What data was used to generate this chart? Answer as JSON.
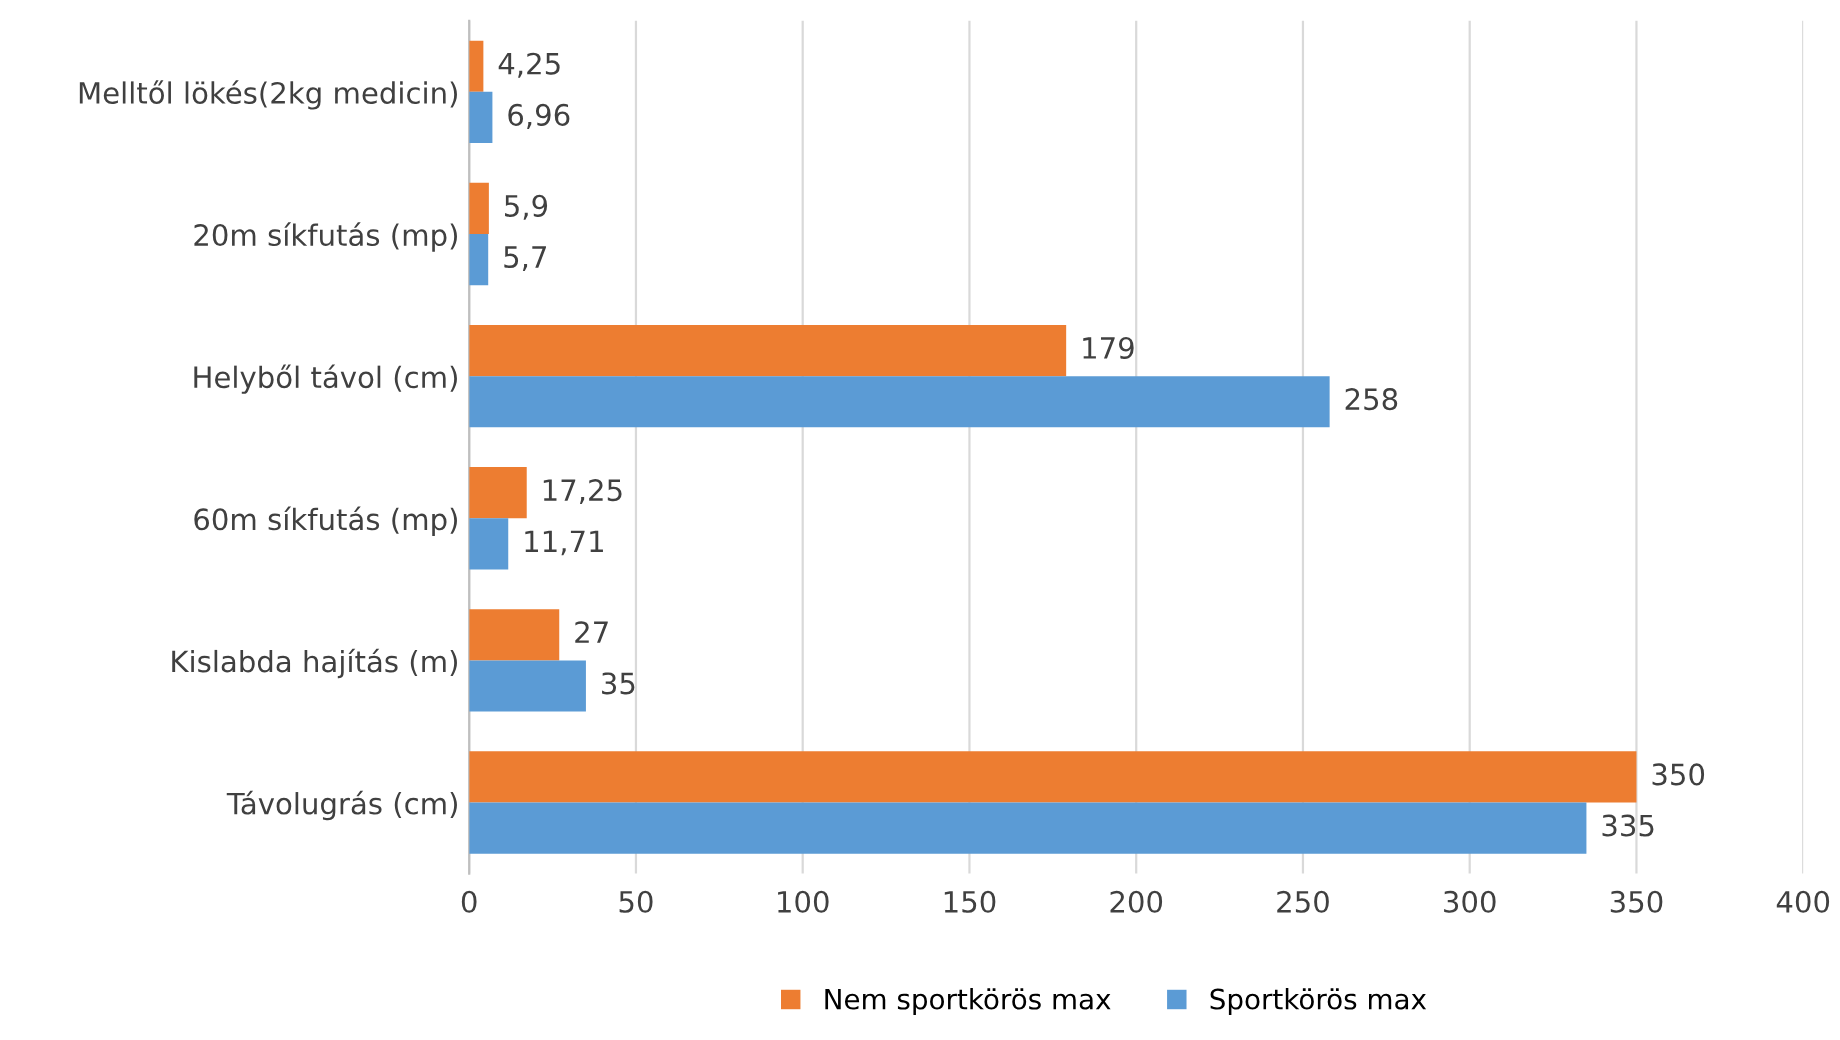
{
  "chart_data": {
    "type": "bar",
    "orientation": "horizontal",
    "categories": [
      "Melltől lökés(2kg medicin)",
      "20m síkfutás (mp)",
      "Helyből távol (cm)",
      "60m síkfutás (mp)",
      "Kislabda hajítás (m)",
      "Távolugrás (cm)"
    ],
    "series": [
      {
        "name": "Nem sportkörös max",
        "color": "#ed7d31",
        "values": [
          4.25,
          5.9,
          179,
          17.25,
          27,
          350
        ],
        "value_labels": [
          "4,25",
          "5,9",
          "179",
          "17,25",
          "27",
          "350"
        ]
      },
      {
        "name": "Sportkörös max",
        "color": "#5b9bd5",
        "values": [
          6.96,
          5.7,
          258,
          11.71,
          35,
          335
        ],
        "value_labels": [
          "6,96",
          "5,7",
          "258",
          "11,71",
          "35",
          "335"
        ]
      }
    ],
    "xlim": [
      0,
      400
    ],
    "xticks": [
      0,
      50,
      100,
      150,
      200,
      250,
      300,
      350,
      400
    ],
    "grid": "x",
    "legend": "bottom"
  }
}
